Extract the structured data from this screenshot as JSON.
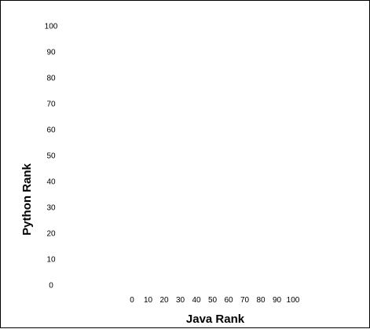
{
  "chart_data": {
    "type": "scatter",
    "title": "",
    "xlabel": "Java Rank",
    "ylabel": "Python Rank",
    "xlim": [
      0,
      100
    ],
    "ylim": [
      0,
      100
    ],
    "x_ticks": [
      "0",
      "10",
      "20",
      "30",
      "40",
      "50",
      "60",
      "70",
      "80",
      "90",
      "100"
    ],
    "y_ticks": [
      "0",
      "10",
      "20",
      "30",
      "40",
      "50",
      "60",
      "70",
      "80",
      "90",
      "100"
    ],
    "grid": false,
    "series": [
      {
        "x": [],
        "y": []
      }
    ]
  }
}
